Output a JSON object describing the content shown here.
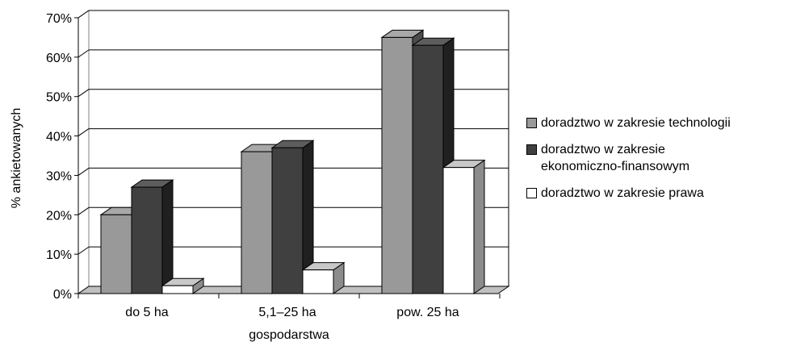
{
  "chart_data": {
    "type": "bar",
    "categories": [
      "do 5 ha",
      "5,1–25 ha",
      "pow. 25 ha"
    ],
    "series": [
      {
        "name": "doradztwo w zakresie technologii",
        "values": [
          20,
          36,
          65
        ],
        "color": "#999999"
      },
      {
        "name": "doradztwo w zakresie\nekonomiczno-finansowym",
        "values": [
          27,
          37,
          63
        ],
        "color": "#404040"
      },
      {
        "name": "doradztwo w zakresie prawa",
        "values": [
          2,
          6,
          32
        ],
        "color": "#ffffff"
      }
    ],
    "yticks": [
      "0%",
      "10%",
      "20%",
      "30%",
      "40%",
      "50%",
      "60%",
      "70%"
    ],
    "ylim": [
      0,
      70
    ],
    "xlabel": "gospodarstwa",
    "ylabel": "% ankietowanych",
    "grid": true,
    "legend_position": "right",
    "style": "3d"
  }
}
